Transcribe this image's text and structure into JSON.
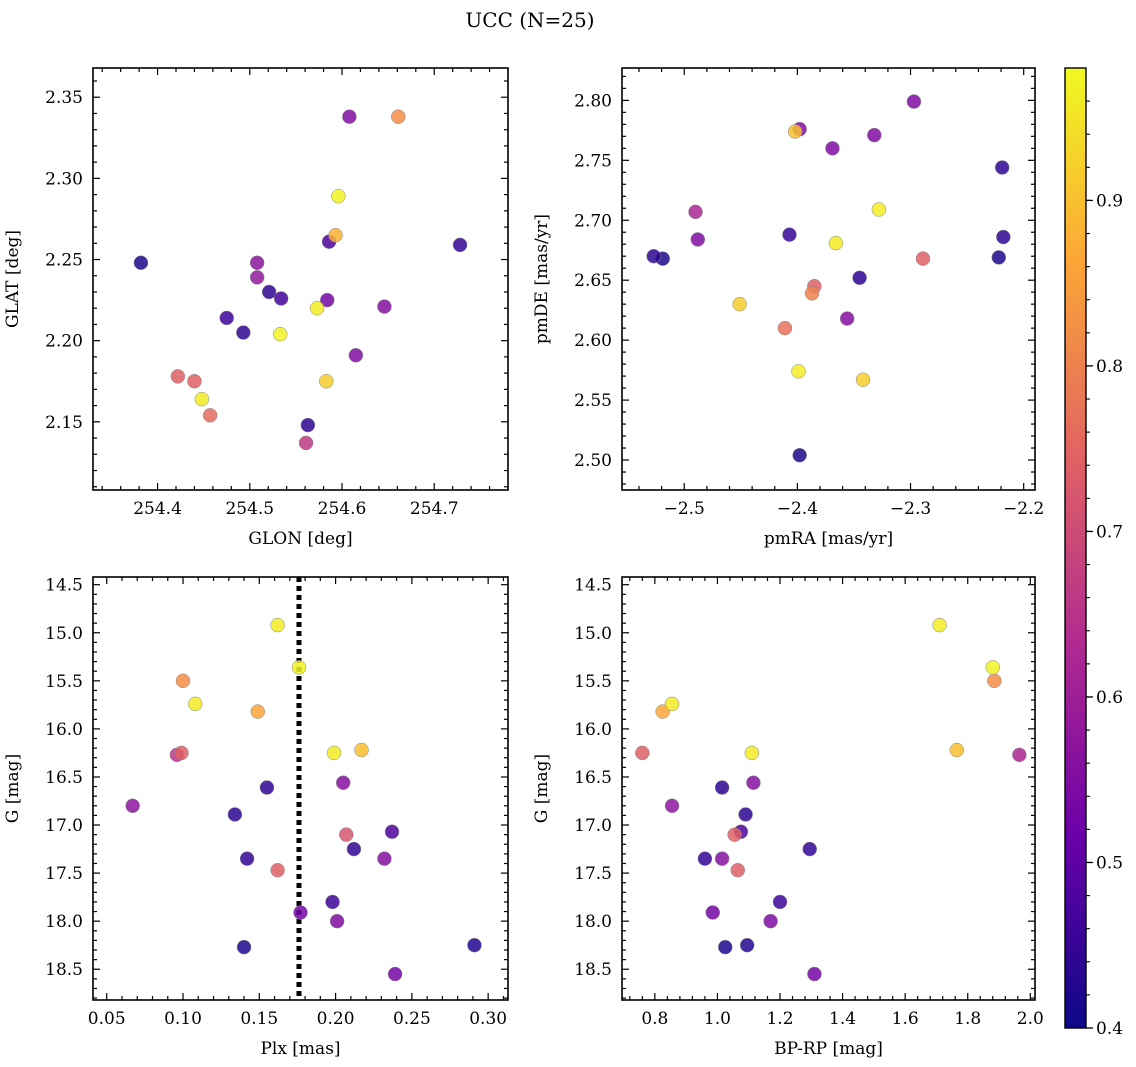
{
  "figure": {
    "title": "UCC (N=25)"
  },
  "colorbar": {
    "vmin": 0.4,
    "vmax": 0.98,
    "ticks": [
      0.4,
      0.5,
      0.6,
      0.7,
      0.8,
      0.9
    ],
    "tick_labels": [
      "0.4",
      "0.5",
      "0.6",
      "0.7",
      "0.8",
      "0.9"
    ],
    "colormap": "plasma",
    "colormap_stops": [
      "#0d0887",
      "#6a00a8",
      "#b12a90",
      "#e16462",
      "#fca636",
      "#f0f921"
    ]
  },
  "chart_data": [
    {
      "type": "scatter",
      "xlabel": "GLON [deg]",
      "ylabel": "GLAT [deg]",
      "xlim": [
        254.33,
        254.78
      ],
      "ylim": [
        2.108,
        2.368
      ],
      "xticks": [
        254.4,
        254.5,
        254.6,
        254.7
      ],
      "xtick_labels": [
        "254.4",
        "254.5",
        "254.6",
        "254.7"
      ],
      "yticks": [
        2.15,
        2.2,
        2.25,
        2.3,
        2.35
      ],
      "ytick_labels": [
        "2.15",
        "2.20",
        "2.25",
        "2.30",
        "2.35"
      ],
      "x": [
        254.661,
        254.608,
        254.596,
        254.593,
        254.728,
        254.586,
        254.382,
        254.508,
        254.508,
        254.521,
        254.534,
        254.584,
        254.573,
        254.646,
        254.475,
        254.493,
        254.533,
        254.615,
        254.422,
        254.44,
        254.448,
        254.583,
        254.457,
        254.563,
        254.561
      ],
      "y": [
        2.338,
        2.338,
        2.289,
        2.265,
        2.259,
        2.261,
        2.248,
        2.248,
        2.239,
        2.23,
        2.226,
        2.225,
        2.22,
        2.221,
        2.214,
        2.205,
        2.204,
        2.191,
        2.178,
        2.175,
        2.164,
        2.175,
        2.154,
        2.148,
        2.137
      ],
      "c": [
        0.82,
        0.55,
        0.97,
        0.88,
        0.45,
        0.48,
        0.42,
        0.57,
        0.58,
        0.44,
        0.47,
        0.53,
        0.96,
        0.56,
        0.46,
        0.44,
        0.97,
        0.55,
        0.74,
        0.74,
        0.96,
        0.92,
        0.76,
        0.44,
        0.66
      ]
    },
    {
      "type": "scatter",
      "xlabel": "pmRA [mas/yr]",
      "ylabel": "pmDE [mas/yr]",
      "xlim": [
        -2.555,
        -2.19
      ],
      "ylim": [
        2.475,
        2.827
      ],
      "xticks": [
        -2.5,
        -2.4,
        -2.3,
        -2.2
      ],
      "xtick_labels": [
        "−2.5",
        "−2.4",
        "−2.3",
        "−2.2"
      ],
      "yticks": [
        2.5,
        2.55,
        2.6,
        2.65,
        2.7,
        2.75,
        2.8
      ],
      "ytick_labels": [
        "2.50",
        "2.55",
        "2.60",
        "2.65",
        "2.70",
        "2.75",
        "2.80"
      ],
      "x": [
        -2.297,
        -2.398,
        -2.402,
        -2.369,
        -2.332,
        -2.219,
        -2.49,
        -2.328,
        -2.488,
        -2.407,
        -2.218,
        -2.366,
        -2.527,
        -2.519,
        -2.222,
        -2.289,
        -2.345,
        -2.385,
        -2.387,
        -2.451,
        -2.356,
        -2.411,
        -2.399,
        -2.342,
        -2.398
      ],
      "y": [
        2.799,
        2.776,
        2.774,
        2.76,
        2.771,
        2.744,
        2.707,
        2.709,
        2.684,
        2.688,
        2.686,
        2.681,
        2.67,
        2.668,
        2.669,
        2.668,
        2.652,
        2.645,
        2.639,
        2.63,
        2.618,
        2.61,
        2.574,
        2.567,
        2.504
      ],
      "c": [
        0.55,
        0.55,
        0.9,
        0.55,
        0.55,
        0.44,
        0.62,
        0.96,
        0.55,
        0.45,
        0.44,
        0.96,
        0.44,
        0.42,
        0.42,
        0.74,
        0.44,
        0.74,
        0.8,
        0.92,
        0.56,
        0.77,
        0.96,
        0.92,
        0.42
      ]
    },
    {
      "type": "scatter",
      "xlabel": "Plx [mas]",
      "ylabel": "G [mag]",
      "xlim": [
        0.041,
        0.313
      ],
      "ylim": [
        18.82,
        14.42
      ],
      "y_inverted": true,
      "xticks": [
        0.05,
        0.1,
        0.15,
        0.2,
        0.25,
        0.3
      ],
      "xtick_labels": [
        "0.05",
        "0.10",
        "0.15",
        "0.20",
        "0.25",
        "0.30"
      ],
      "yticks": [
        14.5,
        15.0,
        15.5,
        16.0,
        16.5,
        17.0,
        17.5,
        18.0,
        18.5
      ],
      "ytick_labels": [
        "14.5",
        "15.0",
        "15.5",
        "16.0",
        "16.5",
        "17.0",
        "17.5",
        "18.0",
        "18.5"
      ],
      "vline": {
        "x": 0.176,
        "style": "dotted"
      },
      "x": [
        0.162,
        0.176,
        0.1,
        0.108,
        0.149,
        0.199,
        0.217,
        0.099,
        0.096,
        0.205,
        0.155,
        0.067,
        0.134,
        0.207,
        0.237,
        0.212,
        0.142,
        0.232,
        0.162,
        0.177,
        0.198,
        0.201,
        0.14,
        0.291,
        0.239
      ],
      "y": [
        14.92,
        15.36,
        15.5,
        15.74,
        15.82,
        16.25,
        16.22,
        16.25,
        16.27,
        16.56,
        16.61,
        16.8,
        16.89,
        17.1,
        17.07,
        17.25,
        17.35,
        17.35,
        17.47,
        17.91,
        17.8,
        18.0,
        18.27,
        18.25,
        18.55
      ],
      "c": [
        0.96,
        0.97,
        0.82,
        0.96,
        0.86,
        0.96,
        0.9,
        0.74,
        0.65,
        0.56,
        0.44,
        0.57,
        0.44,
        0.72,
        0.48,
        0.45,
        0.45,
        0.56,
        0.74,
        0.53,
        0.46,
        0.55,
        0.42,
        0.43,
        0.53
      ]
    },
    {
      "type": "scatter",
      "xlabel": "BP-RP [mag]",
      "ylabel": "G [mag]",
      "xlim": [
        0.695,
        2.015
      ],
      "ylim": [
        18.82,
        14.42
      ],
      "y_inverted": true,
      "xticks": [
        0.8,
        1.0,
        1.2,
        1.4,
        1.6,
        1.8,
        2.0
      ],
      "xtick_labels": [
        "0.8",
        "1.0",
        "1.2",
        "1.4",
        "1.6",
        "1.8",
        "2.0"
      ],
      "yticks": [
        14.5,
        15.0,
        15.5,
        16.0,
        16.5,
        17.0,
        17.5,
        18.0,
        18.5
      ],
      "ytick_labels": [
        "14.5",
        "15.0",
        "15.5",
        "16.0",
        "16.5",
        "17.0",
        "17.5",
        "18.0",
        "18.5"
      ],
      "x": [
        1.71,
        1.88,
        1.885,
        0.855,
        0.825,
        0.76,
        1.765,
        1.11,
        1.965,
        1.115,
        1.015,
        0.855,
        1.09,
        1.055,
        1.075,
        1.295,
        0.96,
        1.015,
        1.065,
        0.985,
        1.2,
        1.17,
        1.025,
        1.095,
        1.31
      ],
      "y": [
        14.92,
        15.36,
        15.5,
        15.74,
        15.82,
        16.25,
        16.22,
        16.25,
        16.27,
        16.56,
        16.61,
        16.8,
        16.89,
        17.1,
        17.07,
        17.25,
        17.35,
        17.35,
        17.47,
        17.91,
        17.8,
        18.0,
        18.27,
        18.25,
        18.55
      ],
      "c": [
        0.96,
        0.97,
        0.82,
        0.96,
        0.86,
        0.74,
        0.9,
        0.96,
        0.62,
        0.56,
        0.44,
        0.57,
        0.44,
        0.74,
        0.48,
        0.45,
        0.45,
        0.56,
        0.74,
        0.53,
        0.46,
        0.55,
        0.42,
        0.43,
        0.53
      ]
    }
  ]
}
